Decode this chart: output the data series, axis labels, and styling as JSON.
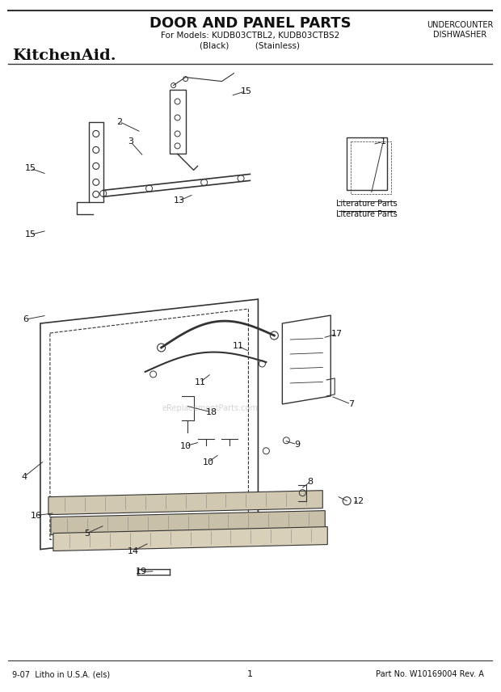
{
  "title": "DOOR AND PANEL PARTS",
  "subtitle1": "For Models: KUDB03CTBL2, KUDB03CTBS2",
  "subtitle2": "(Black)          (Stainless)",
  "top_right1": "UNDERCOUNTER",
  "top_right2": "DISHWASHER",
  "brand": "KitchenAid.",
  "footer_left": "9-07  Litho in U.S.A. (els)",
  "footer_center": "1",
  "footer_right": "Part No. W10169004 Rev. A",
  "watermark": "eReplacementParts.com",
  "bg_color": "#ffffff",
  "line_color": "#333333",
  "text_color": "#111111",
  "literature_parts_label": "Literature Parts"
}
